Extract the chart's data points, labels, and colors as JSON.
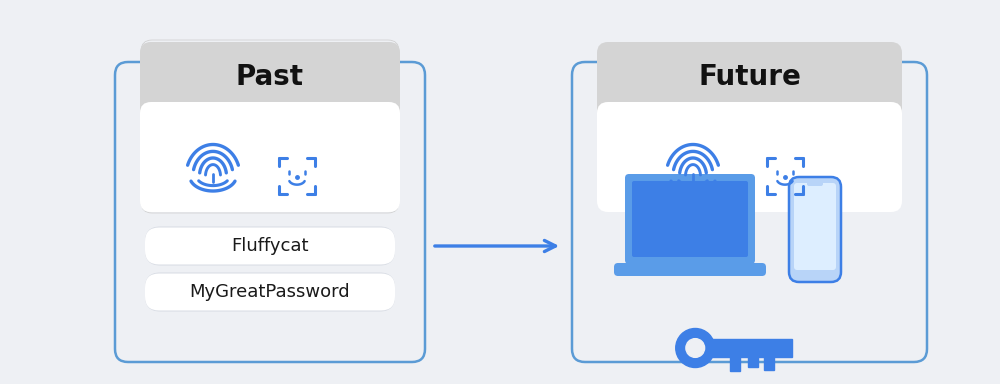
{
  "bg_color": "#eef0f4",
  "title_past": "Past",
  "title_future": "Future",
  "password1": "Fluffycat",
  "password2": "MyGreatPassword",
  "blue_main": "#3d7fe6",
  "blue_light": "#7ab3f0",
  "blue_lighter": "#b8d4f8",
  "blue_medium": "#5a9ce8",
  "gray_header": "#d4d4d4",
  "white": "#ffffff",
  "box_border": "#5b9bd5",
  "title_fontsize": 20,
  "label_fontsize": 13,
  "pill_fontsize": 13
}
